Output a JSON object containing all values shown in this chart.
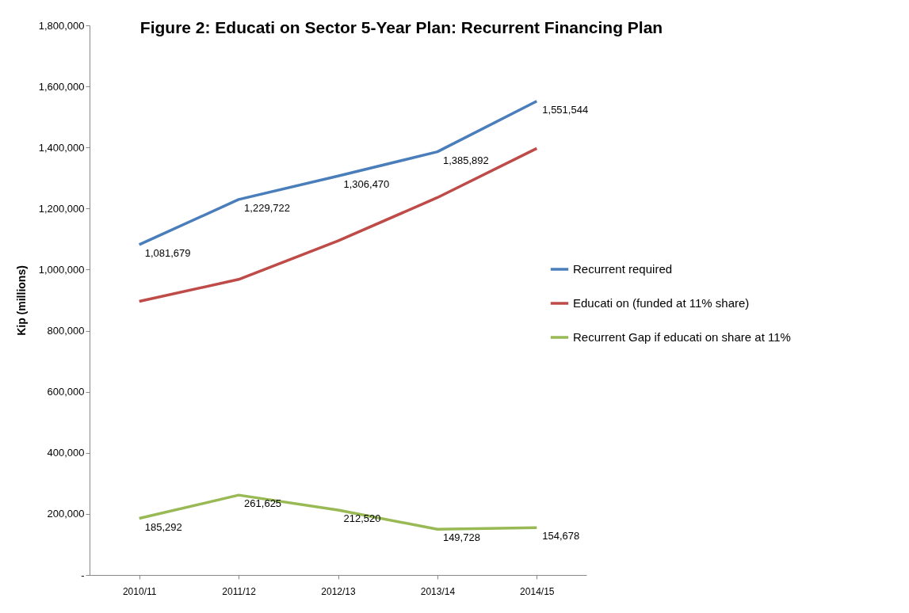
{
  "chart_data": {
    "type": "line",
    "title": "Figure 2: Educati on Sector 5-Year Plan: Recurrent Financing Plan",
    "ylabel": "Kip (millions)",
    "categories": [
      "2010/11",
      "2011/12",
      "2012/13",
      "2013/14",
      "2014/15"
    ],
    "series": [
      {
        "name": "Recurrent required",
        "color": "#4a7ebb",
        "values": [
          1081679,
          1229722,
          1306470,
          1385892,
          1551544
        ],
        "value_labels": [
          "1,081,679",
          "1,229,722",
          "1,306,470",
          "1,385,892",
          "1,551,544"
        ]
      },
      {
        "name": "Educati on (funded at 11% share)",
        "color": "#be4b48",
        "values": [
          896000,
          968000,
          1094000,
          1236000,
          1397000
        ]
      },
      {
        "name": "Recurrent Gap if educati on share at 11%",
        "color": "#98b954",
        "values": [
          185292,
          261625,
          212520,
          149728,
          154678
        ],
        "value_labels": [
          "185,292",
          "261,625",
          "212,520",
          "149,728",
          "154,678"
        ]
      }
    ],
    "ylim": [
      0,
      1800000
    ],
    "yticks": [
      {
        "value": 0,
        "label": "-"
      },
      {
        "value": 200000,
        "label": "200,000"
      },
      {
        "value": 400000,
        "label": "400,000"
      },
      {
        "value": 600000,
        "label": "600,000"
      },
      {
        "value": 800000,
        "label": "800,000"
      },
      {
        "value": 1000000,
        "label": "1,000,000"
      },
      {
        "value": 1200000,
        "label": "1,200,000"
      },
      {
        "value": 1400000,
        "label": "1,400,000"
      },
      {
        "value": 1600000,
        "label": "1,600,000"
      },
      {
        "value": 1800000,
        "label": "1,800,000"
      }
    ],
    "grid": false,
    "legend": "right",
    "marker": "none",
    "line_style": "solid"
  }
}
